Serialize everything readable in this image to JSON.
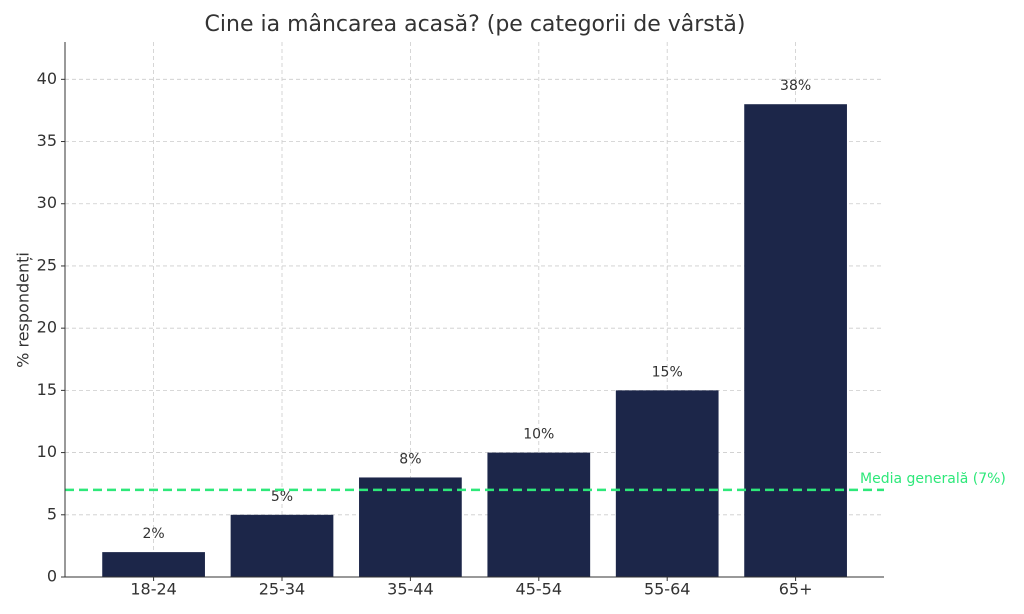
{
  "chart_data": {
    "type": "bar",
    "title": "Cine ia mâncarea acasă? (pe categorii de vârstă)",
    "y_label": "% respondenți",
    "categories": [
      "18-24",
      "25-34",
      "35-44",
      "45-54",
      "55-64",
      "65+"
    ],
    "values": [
      2,
      5,
      8,
      10,
      15,
      38
    ],
    "value_labels": [
      "2%",
      "5%",
      "8%",
      "10%",
      "15%",
      "38%"
    ],
    "color": "#1c2649",
    "ylim": [
      0,
      43
    ],
    "yticks": [
      0,
      5,
      10,
      15,
      20,
      25,
      30,
      35,
      40
    ],
    "grid": true,
    "reference_line": {
      "value": 7,
      "label": "Media generală (7%)",
      "color": "#2ee87a"
    }
  }
}
